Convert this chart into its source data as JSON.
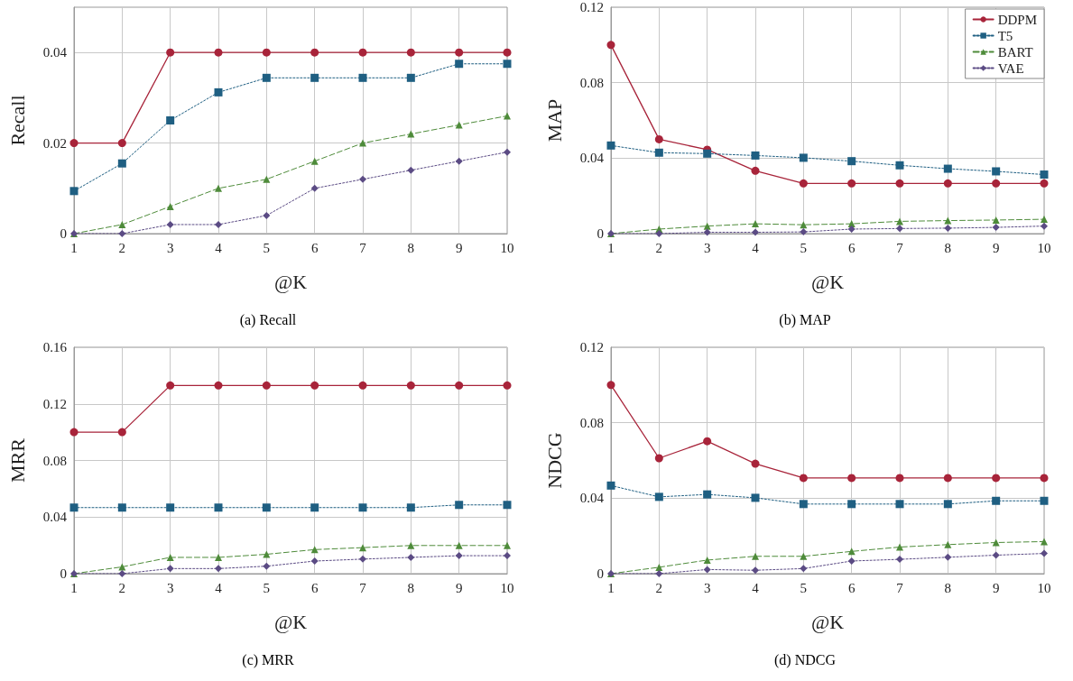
{
  "chart_data": [
    {
      "type": "line",
      "title": "(a) Recall",
      "xlabel": "@K",
      "ylabel": "Recall",
      "x": [
        1,
        2,
        3,
        4,
        5,
        6,
        7,
        8,
        9,
        10
      ],
      "xlim": [
        1,
        10
      ],
      "xticks": [
        1,
        2,
        3,
        4,
        5,
        6,
        7,
        8,
        9,
        10
      ],
      "ylim": [
        0,
        0.05
      ],
      "yticks": [
        0,
        0.02,
        0.04
      ],
      "grid": true,
      "legend": false,
      "series": [
        {
          "color": "#a8243a",
          "marker": "circle",
          "line_style": "solid",
          "values": [
            0.02,
            0.02,
            0.04,
            0.04,
            0.04,
            0.04,
            0.04,
            0.04,
            0.04,
            0.04
          ]
        },
        {
          "color": "#1f5f82",
          "marker": "square",
          "line_style": "dotted",
          "values": [
            0.0094,
            0.0155,
            0.025,
            0.0312,
            0.0344,
            0.0344,
            0.0344,
            0.0344,
            0.0375,
            0.0375
          ]
        },
        {
          "color": "#4e8b3a",
          "marker": "triangle",
          "line_style": "dashed",
          "values": [
            0,
            0.002,
            0.006,
            0.01,
            0.012,
            0.016,
            0.02,
            0.022,
            0.024,
            0.026
          ]
        },
        {
          "color": "#5b4b84",
          "marker": "diamond",
          "line_style": "dotted",
          "values": [
            0,
            0,
            0.002,
            0.002,
            0.004,
            0.01,
            0.012,
            0.014,
            0.016,
            0.018
          ]
        }
      ]
    },
    {
      "type": "line",
      "title": "(b) MAP",
      "xlabel": "@K",
      "ylabel": "MAP",
      "x": [
        1,
        2,
        3,
        4,
        5,
        6,
        7,
        8,
        9,
        10
      ],
      "xlim": [
        1,
        10
      ],
      "xticks": [
        1,
        2,
        3,
        4,
        5,
        6,
        7,
        8,
        9,
        10
      ],
      "ylim": [
        0,
        0.12
      ],
      "yticks": [
        0,
        0.04,
        0.08,
        0.12
      ],
      "grid": true,
      "legend": "top right",
      "series": [
        {
          "name": "DDPM",
          "color": "#a8243a",
          "marker": "circle",
          "line_style": "solid",
          "values": [
            0.1,
            0.05,
            0.0445,
            0.0333,
            0.0266,
            0.0266,
            0.0266,
            0.0266,
            0.0266,
            0.0266
          ]
        },
        {
          "name": "T5",
          "color": "#1f5f82",
          "marker": "square",
          "line_style": "dotted",
          "values": [
            0.0467,
            0.0429,
            0.0424,
            0.0414,
            0.0402,
            0.0384,
            0.0362,
            0.0344,
            0.033,
            0.0313
          ]
        },
        {
          "name": "BART",
          "color": "#4e8b3a",
          "marker": "triangle",
          "line_style": "dashed",
          "values": [
            0,
            0.0024,
            0.004,
            0.0052,
            0.0047,
            0.0052,
            0.0065,
            0.0069,
            0.0072,
            0.0076
          ]
        },
        {
          "name": "VAE",
          "color": "#5b4b84",
          "marker": "diamond",
          "line_style": "dotted",
          "values": [
            0,
            0,
            0.0007,
            0.0007,
            0.0009,
            0.0024,
            0.0027,
            0.0029,
            0.0033,
            0.004
          ]
        }
      ]
    },
    {
      "type": "line",
      "title": "(c) MRR",
      "xlabel": "@K",
      "ylabel": "MRR",
      "x": [
        1,
        2,
        3,
        4,
        5,
        6,
        7,
        8,
        9,
        10
      ],
      "xlim": [
        1,
        10
      ],
      "xticks": [
        1,
        2,
        3,
        4,
        5,
        6,
        7,
        8,
        9,
        10
      ],
      "ylim": [
        0,
        0.16
      ],
      "yticks": [
        0,
        0.04,
        0.08,
        0.12,
        0.16
      ],
      "grid": true,
      "legend": false,
      "series": [
        {
          "color": "#a8243a",
          "marker": "circle",
          "line_style": "solid",
          "values": [
            0.1,
            0.1,
            0.133,
            0.133,
            0.133,
            0.133,
            0.133,
            0.133,
            0.133,
            0.133
          ]
        },
        {
          "color": "#1f5f82",
          "marker": "square",
          "line_style": "dotted",
          "values": [
            0.0467,
            0.0467,
            0.0467,
            0.0467,
            0.0467,
            0.0467,
            0.0467,
            0.0467,
            0.0486,
            0.0486
          ]
        },
        {
          "color": "#4e8b3a",
          "marker": "triangle",
          "line_style": "dashed",
          "values": [
            0,
            0.0048,
            0.0115,
            0.0115,
            0.0137,
            0.017,
            0.0184,
            0.0199,
            0.0199,
            0.0199
          ]
        },
        {
          "color": "#5b4b84",
          "marker": "diamond",
          "line_style": "dotted",
          "values": [
            0,
            0,
            0.0036,
            0.0036,
            0.0053,
            0.0089,
            0.0103,
            0.0115,
            0.0127,
            0.0127
          ]
        }
      ]
    },
    {
      "type": "line",
      "title": "(d) NDCG",
      "xlabel": "@K",
      "ylabel": "NDCG",
      "x": [
        1,
        2,
        3,
        4,
        5,
        6,
        7,
        8,
        9,
        10
      ],
      "xlim": [
        1,
        10
      ],
      "xticks": [
        1,
        2,
        3,
        4,
        5,
        6,
        7,
        8,
        9,
        10
      ],
      "ylim": [
        0,
        0.12
      ],
      "yticks": [
        0,
        0.04,
        0.08,
        0.12
      ],
      "grid": true,
      "legend": false,
      "series": [
        {
          "color": "#a8243a",
          "marker": "circle",
          "line_style": "solid",
          "values": [
            0.1,
            0.0612,
            0.0702,
            0.0583,
            0.0507,
            0.0507,
            0.0507,
            0.0507,
            0.0507,
            0.0507
          ]
        },
        {
          "color": "#1f5f82",
          "marker": "square",
          "line_style": "dotted",
          "values": [
            0.0467,
            0.0407,
            0.042,
            0.0402,
            0.0369,
            0.0369,
            0.0369,
            0.0369,
            0.0386,
            0.0386
          ]
        },
        {
          "color": "#4e8b3a",
          "marker": "triangle",
          "line_style": "dashed",
          "values": [
            0,
            0.0034,
            0.0072,
            0.0092,
            0.0092,
            0.0118,
            0.0141,
            0.0154,
            0.0165,
            0.017
          ]
        },
        {
          "color": "#5b4b84",
          "marker": "diamond",
          "line_style": "dotted",
          "values": [
            0,
            0,
            0.0022,
            0.0018,
            0.0027,
            0.0067,
            0.0076,
            0.0087,
            0.0098,
            0.0107
          ]
        }
      ]
    }
  ]
}
